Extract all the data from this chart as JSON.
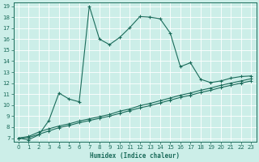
{
  "xlabel": "Humidex (Indice chaleur)",
  "bg_color": "#cceee8",
  "line_color": "#1a6b5a",
  "xlim": [
    -0.5,
    23.5
  ],
  "ylim": [
    6.7,
    19.3
  ],
  "x_ticks": [
    0,
    1,
    2,
    3,
    4,
    5,
    6,
    7,
    8,
    9,
    10,
    11,
    12,
    13,
    14,
    15,
    16,
    17,
    18,
    19,
    20,
    21,
    22,
    23
  ],
  "y_ticks": [
    7,
    8,
    9,
    10,
    11,
    12,
    13,
    14,
    15,
    16,
    17,
    18,
    19
  ],
  "line1_x": [
    0,
    1,
    2,
    3,
    4,
    5,
    6,
    7,
    8,
    9,
    10,
    11,
    12,
    13,
    14,
    15,
    16,
    17,
    18,
    19,
    20,
    21,
    22,
    23
  ],
  "line1_y": [
    7.0,
    6.85,
    7.3,
    8.6,
    11.1,
    10.55,
    10.3,
    19.0,
    16.0,
    15.5,
    16.15,
    17.05,
    18.05,
    18.0,
    17.85,
    16.55,
    13.5,
    13.85,
    12.35,
    12.05,
    12.2,
    12.45,
    12.6,
    12.65
  ],
  "line2_x": [
    0,
    1,
    2,
    3,
    4,
    5,
    6,
    7,
    8,
    9,
    10,
    11,
    12,
    13,
    14,
    15,
    16,
    17,
    18,
    19,
    20,
    21,
    22,
    23
  ],
  "line2_y": [
    7.0,
    7.15,
    7.55,
    7.85,
    8.1,
    8.3,
    8.55,
    8.75,
    8.95,
    9.15,
    9.45,
    9.65,
    9.95,
    10.15,
    10.4,
    10.65,
    10.9,
    11.1,
    11.35,
    11.55,
    11.8,
    12.0,
    12.2,
    12.4
  ],
  "line3_x": [
    0,
    1,
    2,
    3,
    4,
    5,
    6,
    7,
    8,
    9,
    10,
    11,
    12,
    13,
    14,
    15,
    16,
    17,
    18,
    19,
    20,
    21,
    22,
    23
  ],
  "line3_y": [
    7.0,
    7.05,
    7.35,
    7.65,
    7.95,
    8.15,
    8.4,
    8.6,
    8.8,
    9.0,
    9.25,
    9.5,
    9.75,
    9.95,
    10.2,
    10.45,
    10.7,
    10.9,
    11.15,
    11.35,
    11.6,
    11.8,
    12.0,
    12.2
  ]
}
